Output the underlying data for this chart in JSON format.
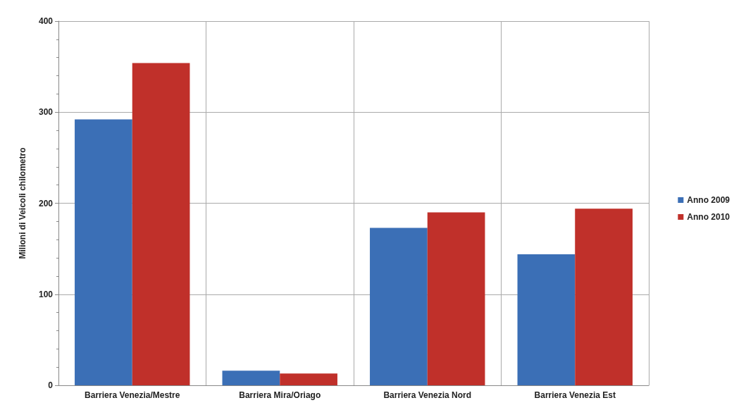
{
  "chart_data": {
    "type": "bar",
    "ylabel": "Milioni di Veicoli chilometro",
    "categories": [
      "Barriera Venezia/Mestre",
      "Barriera Mira/Oriago",
      "Barriera Venezia Nord",
      "Barriera Venezia Est"
    ],
    "series": [
      {
        "name": "Anno 2009",
        "color": "#3b6fb6",
        "values": [
          292,
          16,
          173,
          144
        ]
      },
      {
        "name": "Anno 2010",
        "color": "#c0302a",
        "values": [
          354,
          13,
          190,
          194
        ]
      }
    ],
    "ylim": [
      0,
      400
    ],
    "yticks": [
      0,
      100,
      200,
      300,
      400
    ],
    "grid": true,
    "legend": "right"
  }
}
